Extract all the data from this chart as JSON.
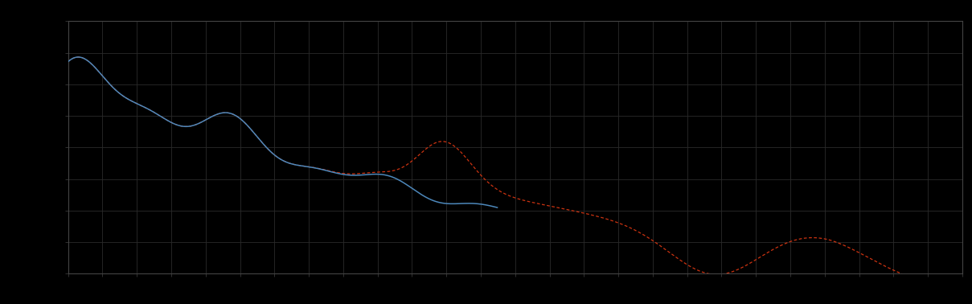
{
  "background_color": "#000000",
  "plot_bg_color": "#000000",
  "grid_color": "#2a2a2a",
  "blue_color": "#4d88bb",
  "red_color": "#cc3311",
  "figsize": [
    12.09,
    3.78
  ],
  "dpi": 100,
  "xlim": [
    0,
    100
  ],
  "ylim": [
    0,
    10
  ],
  "spine_color": "#444444",
  "tick_color": "#444444",
  "n_x_gridlines": 26,
  "n_y_gridlines": 8
}
